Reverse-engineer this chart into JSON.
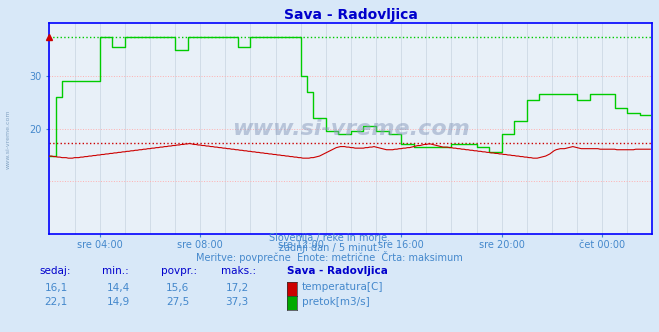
{
  "title": "Sava - Radovljica",
  "title_color": "#0000cc",
  "bg_color": "#d8e8f8",
  "plot_bg_color": "#e8f0f8",
  "grid_color": "#c8d4e0",
  "grid_color_major": "#ffb0b0",
  "xlabel_color": "#4488cc",
  "text_color": "#4488cc",
  "watermark": "www.si-vreme.com",
  "subtitle_lines": [
    "Slovenija / reke in morje.",
    "zadnji dan / 5 minut.",
    "Meritve: povprečne  Enote: metrične  Črta: maksimum"
  ],
  "legend_title": "Sava - Radovljica",
  "legend_rows": [
    {
      "sedaj": "16,1",
      "min": "14,4",
      "povpr": "15,6",
      "maks": "17,2",
      "color": "#cc0000",
      "label": "temperatura[C]"
    },
    {
      "sedaj": "22,1",
      "min": "14,9",
      "povpr": "27,5",
      "maks": "37,3",
      "color": "#00aa00",
      "label": "pretok[m3/s]"
    }
  ],
  "ylim": [
    0,
    40
  ],
  "ytick_positions": [
    20,
    30
  ],
  "ytick_labels": [
    "20",
    "30"
  ],
  "xlim": [
    0,
    288
  ],
  "xtick_positions": [
    24,
    72,
    120,
    168,
    216,
    264
  ],
  "xtick_labels": [
    "sre 04:00",
    "sre 08:00",
    "sre 12:00",
    "sre 16:00",
    "sre 20:00",
    "čet 00:00"
  ],
  "hline_temp_max": 17.2,
  "hline_flow_max": 37.3,
  "temp_color": "#cc0000",
  "flow_color": "#00cc00",
  "axis_color": "#0000ff",
  "axis_bottom_color": "#0000ff",
  "flow_data_segments": [
    {
      "start": 0,
      "end": 3,
      "value": 14.9
    },
    {
      "start": 3,
      "end": 6,
      "value": 26.0
    },
    {
      "start": 6,
      "end": 9,
      "value": 29.0
    },
    {
      "start": 9,
      "end": 18,
      "value": 29.0
    },
    {
      "start": 18,
      "end": 24,
      "value": 29.0
    },
    {
      "start": 24,
      "end": 30,
      "value": 37.3
    },
    {
      "start": 30,
      "end": 36,
      "value": 35.5
    },
    {
      "start": 36,
      "end": 42,
      "value": 37.3
    },
    {
      "start": 42,
      "end": 60,
      "value": 37.3
    },
    {
      "start": 60,
      "end": 66,
      "value": 35.0
    },
    {
      "start": 66,
      "end": 72,
      "value": 37.3
    },
    {
      "start": 72,
      "end": 90,
      "value": 37.3
    },
    {
      "start": 90,
      "end": 96,
      "value": 35.5
    },
    {
      "start": 96,
      "end": 108,
      "value": 37.3
    },
    {
      "start": 108,
      "end": 114,
      "value": 37.3
    },
    {
      "start": 114,
      "end": 120,
      "value": 37.3
    },
    {
      "start": 120,
      "end": 123,
      "value": 30.0
    },
    {
      "start": 123,
      "end": 126,
      "value": 27.0
    },
    {
      "start": 126,
      "end": 129,
      "value": 22.0
    },
    {
      "start": 129,
      "end": 132,
      "value": 22.0
    },
    {
      "start": 132,
      "end": 138,
      "value": 19.5
    },
    {
      "start": 138,
      "end": 144,
      "value": 19.0
    },
    {
      "start": 144,
      "end": 150,
      "value": 19.5
    },
    {
      "start": 150,
      "end": 156,
      "value": 20.5
    },
    {
      "start": 156,
      "end": 162,
      "value": 19.5
    },
    {
      "start": 162,
      "end": 168,
      "value": 19.0
    },
    {
      "start": 168,
      "end": 174,
      "value": 17.0
    },
    {
      "start": 174,
      "end": 192,
      "value": 16.5
    },
    {
      "start": 192,
      "end": 198,
      "value": 17.0
    },
    {
      "start": 198,
      "end": 204,
      "value": 17.0
    },
    {
      "start": 204,
      "end": 210,
      "value": 16.5
    },
    {
      "start": 210,
      "end": 216,
      "value": 15.5
    },
    {
      "start": 216,
      "end": 222,
      "value": 19.0
    },
    {
      "start": 222,
      "end": 228,
      "value": 21.5
    },
    {
      "start": 228,
      "end": 234,
      "value": 25.5
    },
    {
      "start": 234,
      "end": 252,
      "value": 26.5
    },
    {
      "start": 252,
      "end": 258,
      "value": 25.5
    },
    {
      "start": 258,
      "end": 270,
      "value": 26.5
    },
    {
      "start": 270,
      "end": 276,
      "value": 24.0
    },
    {
      "start": 276,
      "end": 282,
      "value": 23.0
    },
    {
      "start": 282,
      "end": 288,
      "value": 22.5
    }
  ],
  "temp_data": [
    14.8,
    14.8,
    14.7,
    14.7,
    14.6,
    14.6,
    14.5,
    14.5,
    14.5,
    14.4,
    14.4,
    14.4,
    14.5,
    14.5,
    14.5,
    14.6,
    14.6,
    14.7,
    14.7,
    14.8,
    14.8,
    14.9,
    14.9,
    15.0,
    15.0,
    15.1,
    15.1,
    15.2,
    15.2,
    15.3,
    15.3,
    15.4,
    15.4,
    15.5,
    15.5,
    15.6,
    15.6,
    15.7,
    15.7,
    15.8,
    15.8,
    15.9,
    15.9,
    16.0,
    16.0,
    16.1,
    16.1,
    16.2,
    16.2,
    16.3,
    16.3,
    16.4,
    16.4,
    16.5,
    16.5,
    16.6,
    16.6,
    16.7,
    16.7,
    16.8,
    16.8,
    16.9,
    16.9,
    17.0,
    17.0,
    17.1,
    17.1,
    17.2,
    17.1,
    17.0,
    17.0,
    16.9,
    16.9,
    16.8,
    16.8,
    16.7,
    16.7,
    16.6,
    16.6,
    16.5,
    16.5,
    16.4,
    16.4,
    16.3,
    16.3,
    16.2,
    16.2,
    16.1,
    16.1,
    16.0,
    16.0,
    15.9,
    15.9,
    15.8,
    15.8,
    15.7,
    15.7,
    15.6,
    15.6,
    15.5,
    15.5,
    15.4,
    15.4,
    15.3,
    15.3,
    15.2,
    15.2,
    15.1,
    15.1,
    15.0,
    15.0,
    14.9,
    14.9,
    14.8,
    14.8,
    14.7,
    14.7,
    14.6,
    14.6,
    14.5,
    14.5,
    14.4,
    14.4,
    14.4,
    14.4,
    14.5,
    14.5,
    14.6,
    14.7,
    14.8,
    15.0,
    15.2,
    15.4,
    15.6,
    15.8,
    16.0,
    16.2,
    16.4,
    16.5,
    16.6,
    16.6,
    16.6,
    16.5,
    16.5,
    16.4,
    16.4,
    16.3,
    16.3,
    16.3,
    16.3,
    16.3,
    16.4,
    16.4,
    16.5,
    16.5,
    16.6,
    16.5,
    16.4,
    16.3,
    16.2,
    16.1,
    16.0,
    16.0,
    16.0,
    16.0,
    16.1,
    16.1,
    16.2,
    16.2,
    16.3,
    16.3,
    16.4,
    16.4,
    16.5,
    16.6,
    16.7,
    16.8,
    16.8,
    16.9,
    17.0,
    17.0,
    17.1,
    17.1,
    17.0,
    16.9,
    16.8,
    16.7,
    16.6,
    16.5,
    16.5,
    16.5,
    16.4,
    16.4,
    16.3,
    16.3,
    16.2,
    16.2,
    16.1,
    16.1,
    16.0,
    16.0,
    15.9,
    15.9,
    15.8,
    15.8,
    15.7,
    15.7,
    15.6,
    15.6,
    15.5,
    15.5,
    15.4,
    15.4,
    15.3,
    15.3,
    15.2,
    15.2,
    15.1,
    15.1,
    15.0,
    15.0,
    14.9,
    14.9,
    14.8,
    14.8,
    14.7,
    14.7,
    14.6,
    14.6,
    14.5,
    14.5,
    14.4,
    14.4,
    14.4,
    14.5,
    14.6,
    14.7,
    14.8,
    15.0,
    15.2,
    15.5,
    15.8,
    16.0,
    16.1,
    16.2,
    16.2,
    16.2,
    16.3,
    16.4,
    16.5,
    16.6,
    16.5,
    16.4,
    16.3,
    16.2,
    16.2,
    16.2,
    16.2,
    16.2,
    16.2,
    16.2,
    16.2,
    16.2,
    16.1,
    16.1,
    16.1,
    16.1,
    16.1,
    16.1,
    16.1,
    16.1,
    16.0,
    16.0,
    16.0,
    16.0,
    16.0,
    16.0,
    16.0,
    16.0,
    16.0,
    16.1,
    16.1,
    16.1,
    16.1,
    16.1,
    16.1,
    16.1,
    16.1
  ]
}
